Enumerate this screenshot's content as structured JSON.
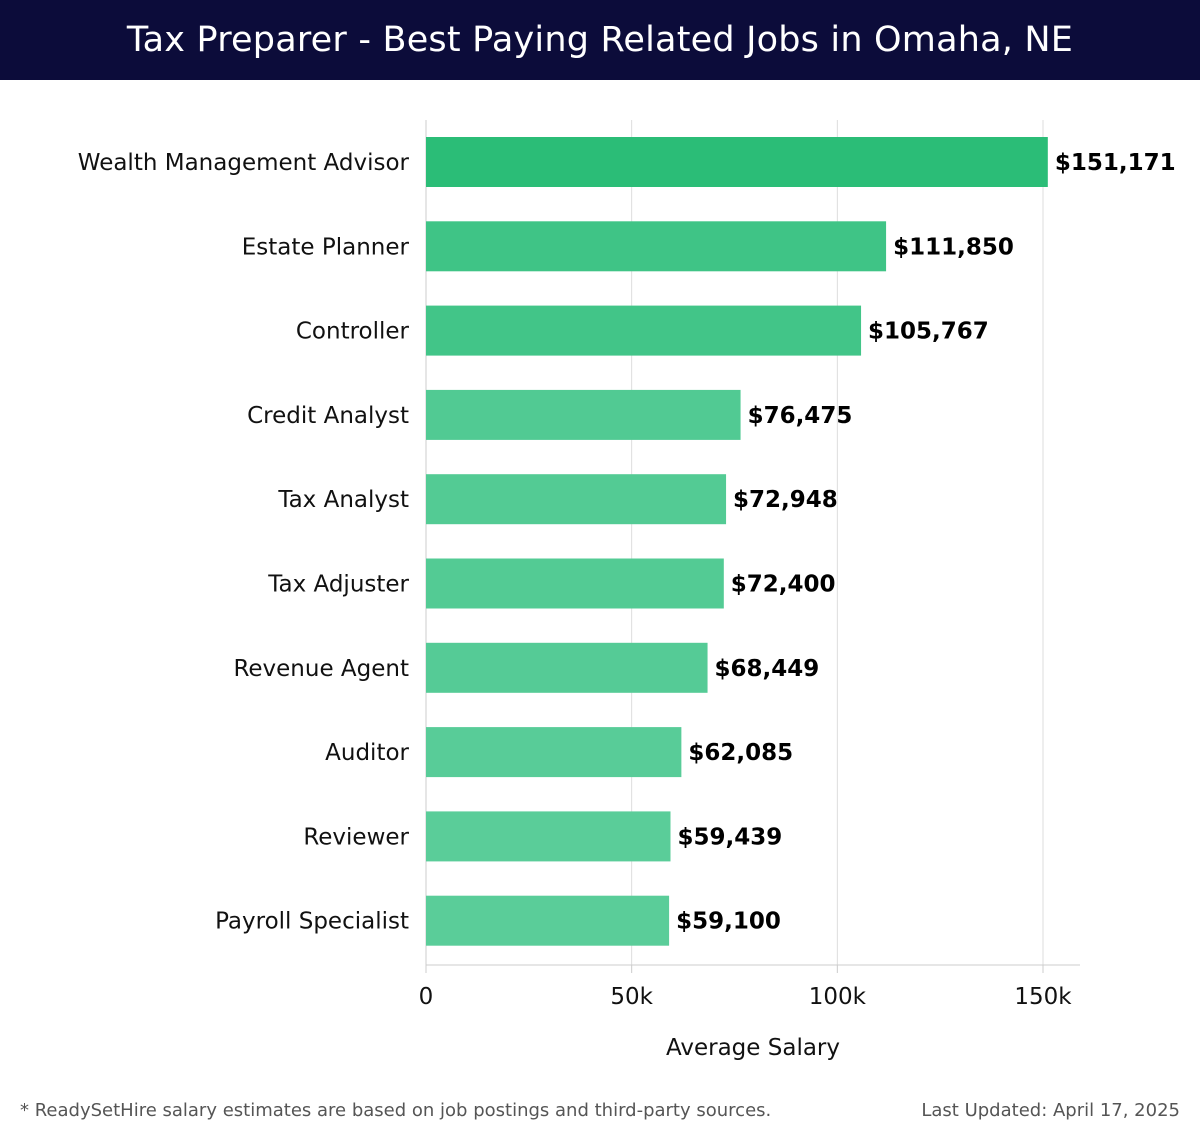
{
  "title": "Tax Preparer - Best Paying Related Jobs in Omaha, NE",
  "footer": {
    "note": "* ReadySetHire salary estimates are based on job postings and third-party sources.",
    "updated": "Last Updated: April 17, 2025"
  },
  "chart_data": {
    "type": "bar",
    "orientation": "horizontal",
    "categories": [
      "Wealth Management Advisor",
      "Estate Planner",
      "Controller",
      "Credit Analyst",
      "Tax Analyst",
      "Tax Adjuster",
      "Revenue Agent",
      "Auditor",
      "Reviewer",
      "Payroll Specialist"
    ],
    "values": [
      151171,
      111850,
      105767,
      76475,
      72948,
      72400,
      68449,
      62085,
      59439,
      59100
    ],
    "value_labels": [
      "$151,171",
      "$111,850",
      "$105,767",
      "$76,475",
      "$72,948",
      "$72,400",
      "$68,449",
      "$62,085",
      "$59,439",
      "$59,100"
    ],
    "xlabel": "Average Salary",
    "xlim": [
      0,
      159000
    ],
    "xticks": [
      0,
      50000,
      100000,
      150000
    ],
    "xtick_labels": [
      "0",
      "50k",
      "100k",
      "150k"
    ],
    "grid": true,
    "colors": {
      "bar_high": "#2bbd77",
      "bar_low": "#5acd99",
      "grid": "#dddddd"
    }
  }
}
